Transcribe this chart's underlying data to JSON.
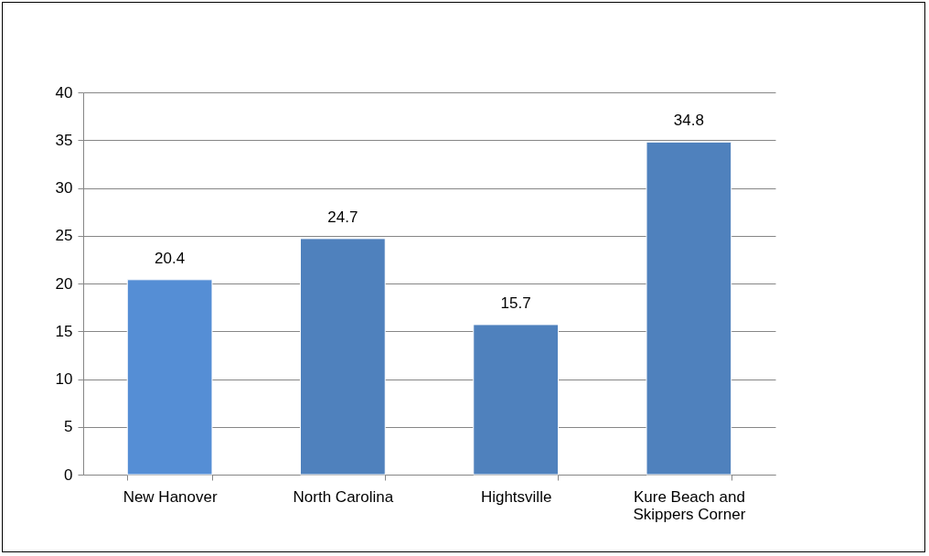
{
  "chart_data": {
    "type": "bar",
    "categories": [
      "New Hanover",
      "North Carolina",
      "Hightsville",
      "Kure Beach and Skippers Corner"
    ],
    "values": [
      20.4,
      24.7,
      15.7,
      34.8
    ],
    "colors": [
      "#558ed5",
      "#4f81bd",
      "#4f81bd",
      "#4f81bd"
    ],
    "ylim": [
      0,
      40
    ],
    "yticks": [
      0,
      5,
      10,
      15,
      20,
      25,
      30,
      35,
      40
    ],
    "grid": "y",
    "data_labels": true
  }
}
